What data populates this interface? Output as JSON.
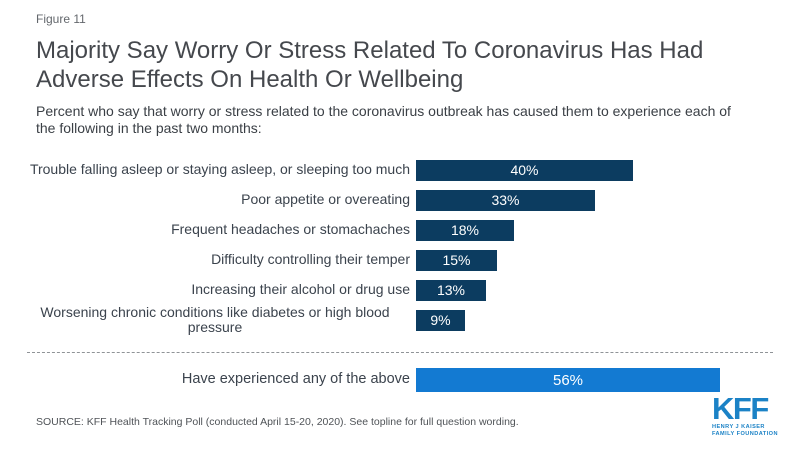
{
  "figure_label": "Figure 11",
  "title": "Majority Say Worry Or Stress Related To Coronavirus Has Had Adverse Effects On Health Or Wellbeing",
  "subtitle": "Percent who say that worry or stress related to the coronavirus outbreak has caused them to experience each of the following in the past two months:",
  "source": "SOURCE: KFF Health Tracking Poll (conducted April 15-20, 2020). See topline for full question wording.",
  "logo": {
    "acronym": "KFF",
    "subline1": "HENRY J KAISER",
    "subline2": "FAMILY FOUNDATION",
    "color": "#1b82c6"
  },
  "colors": {
    "bar_dark": "#0c3c60",
    "bar_highlight": "#137ad2",
    "value_text": "#ffffff"
  },
  "chart_data": {
    "type": "bar",
    "orientation": "horizontal",
    "unit": "%",
    "xlim": [
      0,
      100
    ],
    "grid": false,
    "legend": false,
    "categories": [
      "Trouble falling asleep or staying asleep, or sleeping too much",
      "Poor appetite or overeating",
      "Frequent headaches or stomachaches",
      "Difficulty controlling their temper",
      "Increasing their alcohol or drug use",
      "Worsening chronic conditions like diabetes or high blood pressure"
    ],
    "values": [
      40,
      33,
      18,
      15,
      13,
      9
    ],
    "summary": {
      "label": "Have experienced any of the above",
      "value": 56
    }
  }
}
